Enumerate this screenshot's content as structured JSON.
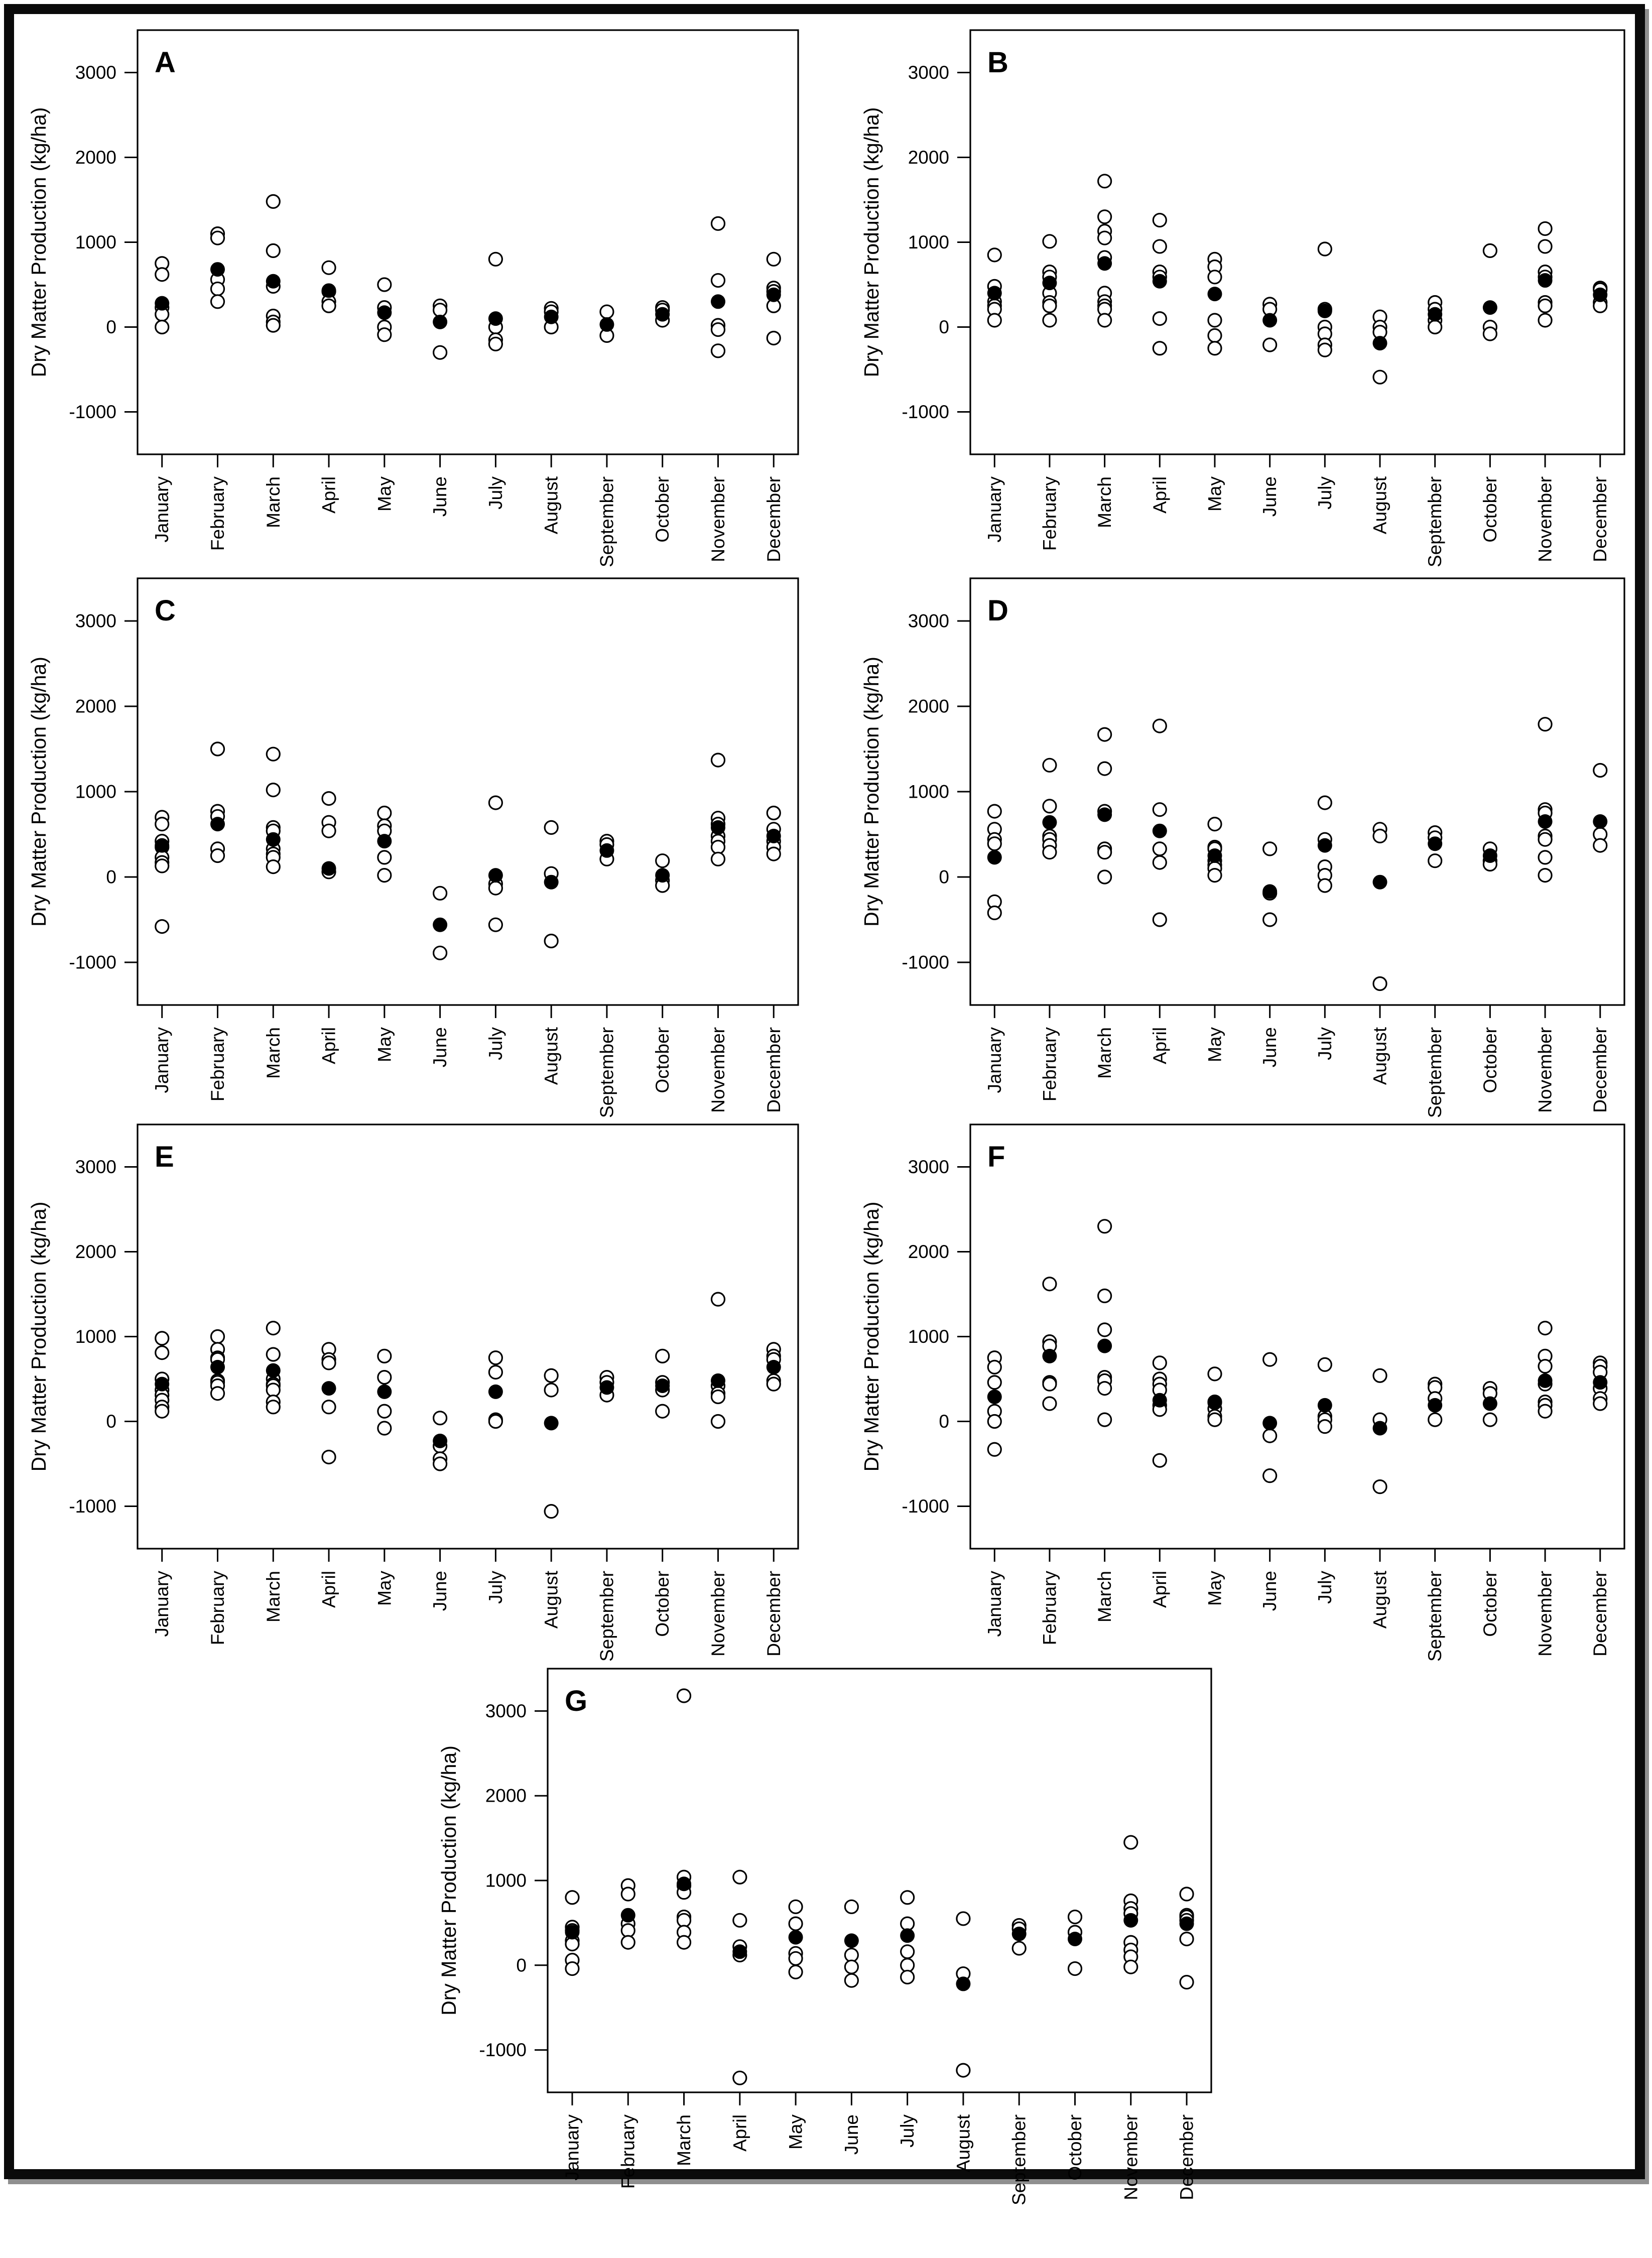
{
  "figure": {
    "border_color": "#0a0a0a",
    "background_color": "#ffffff"
  },
  "chart_data": {
    "type": "scatter",
    "ylabel": "Dry Matter Production (kg/ha)",
    "categories": [
      "January",
      "February",
      "March",
      "April",
      "May",
      "June",
      "July",
      "August",
      "September",
      "October",
      "November",
      "December"
    ],
    "yticks": [
      -1000,
      0,
      1000,
      2000,
      3000
    ],
    "ylim": [
      -1500,
      3500
    ],
    "grid": false,
    "marker_open": "open-circle (monthly observations)",
    "marker_mean": "filled-circle (monthly mean)",
    "point_color": "#000000",
    "panels": [
      {
        "label": "A",
        "open": [
          [
            750,
            620,
            230,
            150,
            0
          ],
          [
            1100,
            1050,
            560,
            450,
            300
          ],
          [
            1480,
            900,
            480,
            130,
            60,
            20
          ],
          [
            700,
            420,
            300,
            250
          ],
          [
            500,
            230,
            0,
            -90
          ],
          [
            250,
            200,
            -300
          ],
          [
            800,
            0,
            -150,
            -200
          ],
          [
            220,
            180,
            0
          ],
          [
            180,
            -100
          ],
          [
            230,
            200,
            80
          ],
          [
            1220,
            550,
            20,
            -30,
            -280
          ],
          [
            800,
            460,
            420,
            250,
            -130
          ]
        ],
        "mean": [
          280,
          680,
          540,
          430,
          170,
          60,
          100,
          120,
          30,
          150,
          300,
          380
        ]
      },
      {
        "label": "B",
        "open": [
          [
            850,
            480,
            300,
            250,
            210,
            80
          ],
          [
            1010,
            650,
            590,
            400,
            290,
            250,
            80
          ],
          [
            1720,
            1300,
            1130,
            1050,
            820,
            400,
            300,
            250,
            210,
            80
          ],
          [
            1260,
            950,
            650,
            590,
            100,
            -250
          ],
          [
            800,
            710,
            590,
            80,
            -100,
            -250
          ],
          [
            270,
            210,
            -210
          ],
          [
            920,
            210,
            0,
            -80,
            -210,
            -270
          ],
          [
            120,
            0,
            -60,
            -590
          ],
          [
            290,
            210,
            80,
            0
          ],
          [
            900,
            0,
            -80
          ],
          [
            1160,
            950,
            650,
            590,
            290,
            250,
            80
          ],
          [
            460,
            440,
            290,
            250
          ]
        ],
        "mean": [
          400,
          520,
          750,
          540,
          390,
          80,
          190,
          -190,
          150,
          230,
          550,
          380
        ]
      },
      {
        "label": "C",
        "open": [
          [
            700,
            620,
            420,
            350,
            230,
            170,
            130,
            -580
          ],
          [
            1500,
            770,
            710,
            330,
            250
          ],
          [
            1440,
            1020,
            580,
            540,
            330,
            270,
            230,
            120
          ],
          [
            920,
            640,
            540,
            60
          ],
          [
            750,
            600,
            540,
            230,
            20
          ],
          [
            -190,
            -890
          ],
          [
            870,
            -80,
            -130,
            -560
          ],
          [
            580,
            40,
            -750
          ],
          [
            420,
            380,
            210
          ],
          [
            190,
            -40,
            -100
          ],
          [
            1370,
            690,
            620,
            480,
            420,
            350,
            210
          ],
          [
            750,
            560,
            420,
            350,
            270
          ]
        ],
        "mean": [
          370,
          620,
          440,
          100,
          420,
          -560,
          20,
          -60,
          310,
          20,
          580,
          480
        ]
      },
      {
        "label": "D",
        "open": [
          [
            770,
            560,
            440,
            390,
            -290,
            -420
          ],
          [
            1310,
            830,
            480,
            440,
            370,
            290
          ],
          [
            1670,
            1270,
            770,
            330,
            290,
            0
          ],
          [
            1770,
            790,
            330,
            170,
            -500
          ],
          [
            620,
            350,
            330,
            190,
            140,
            100,
            20
          ],
          [
            330,
            -190,
            -500
          ],
          [
            870,
            440,
            120,
            20,
            -100
          ],
          [
            560,
            480,
            -1250
          ],
          [
            520,
            460,
            190
          ],
          [
            330,
            190,
            150
          ],
          [
            1790,
            790,
            750,
            480,
            440,
            230,
            20
          ],
          [
            1250,
            500,
            370
          ]
        ],
        "mean": [
          230,
          640,
          730,
          540,
          250,
          -170,
          370,
          -60,
          390,
          250,
          650,
          650
        ]
      },
      {
        "label": "E",
        "open": [
          [
            980,
            810,
            500,
            370,
            310,
            250,
            170,
            120
          ],
          [
            1000,
            850,
            750,
            730,
            480,
            460,
            420,
            330
          ],
          [
            1100,
            790,
            500,
            440,
            420,
            370,
            230,
            170
          ],
          [
            850,
            730,
            690,
            170,
            -420
          ],
          [
            770,
            520,
            120,
            -80
          ],
          [
            40,
            -290,
            -440,
            -500
          ],
          [
            750,
            580,
            20,
            0
          ],
          [
            540,
            370,
            -1060
          ],
          [
            520,
            460,
            310
          ],
          [
            770,
            460,
            370,
            120
          ],
          [
            1440,
            420,
            330,
            290,
            0
          ],
          [
            850,
            770,
            730,
            480,
            440
          ]
        ],
        "mean": [
          440,
          640,
          600,
          390,
          350,
          -230,
          350,
          -20,
          400,
          420,
          480,
          640
        ]
      },
      {
        "label": "F",
        "open": [
          [
            750,
            640,
            460,
            120,
            0,
            -330
          ],
          [
            1620,
            940,
            890,
            460,
            440,
            210
          ],
          [
            2300,
            1480,
            1080,
            520,
            480,
            390,
            20
          ],
          [
            690,
            500,
            440,
            370,
            190,
            140,
            -460
          ],
          [
            560,
            230,
            150,
            60,
            20
          ],
          [
            730,
            -170,
            -640
          ],
          [
            670,
            60,
            20,
            -60
          ],
          [
            540,
            20,
            -770
          ],
          [
            440,
            400,
            270,
            20
          ],
          [
            390,
            330,
            20
          ],
          [
            1100,
            770,
            650,
            440,
            230,
            190,
            120
          ],
          [
            690,
            650,
            580,
            390,
            270,
            210
          ]
        ],
        "mean": [
          290,
          770,
          890,
          250,
          220,
          -20,
          190,
          -80,
          190,
          210,
          480,
          460
        ]
      },
      {
        "label": "G",
        "open": [
          [
            800,
            450,
            410,
            290,
            250,
            60,
            -40
          ],
          [
            940,
            840,
            490,
            410,
            270
          ],
          [
            3180,
            1040,
            940,
            860,
            570,
            530,
            390,
            270
          ],
          [
            1040,
            530,
            220,
            120,
            -1330
          ],
          [
            690,
            490,
            140,
            80,
            -80
          ],
          [
            690,
            120,
            -20,
            -180
          ],
          [
            800,
            490,
            160,
            0,
            -140
          ],
          [
            550,
            -100,
            -1240
          ],
          [
            470,
            430,
            200
          ],
          [
            570,
            390,
            -40
          ],
          [
            1450,
            760,
            670,
            610,
            270,
            180,
            100,
            -20
          ],
          [
            840,
            590,
            570,
            530,
            310,
            -200
          ]
        ],
        "mean": [
          390,
          590,
          960,
          160,
          330,
          290,
          350,
          -220,
          370,
          310,
          530,
          490
        ]
      }
    ]
  }
}
